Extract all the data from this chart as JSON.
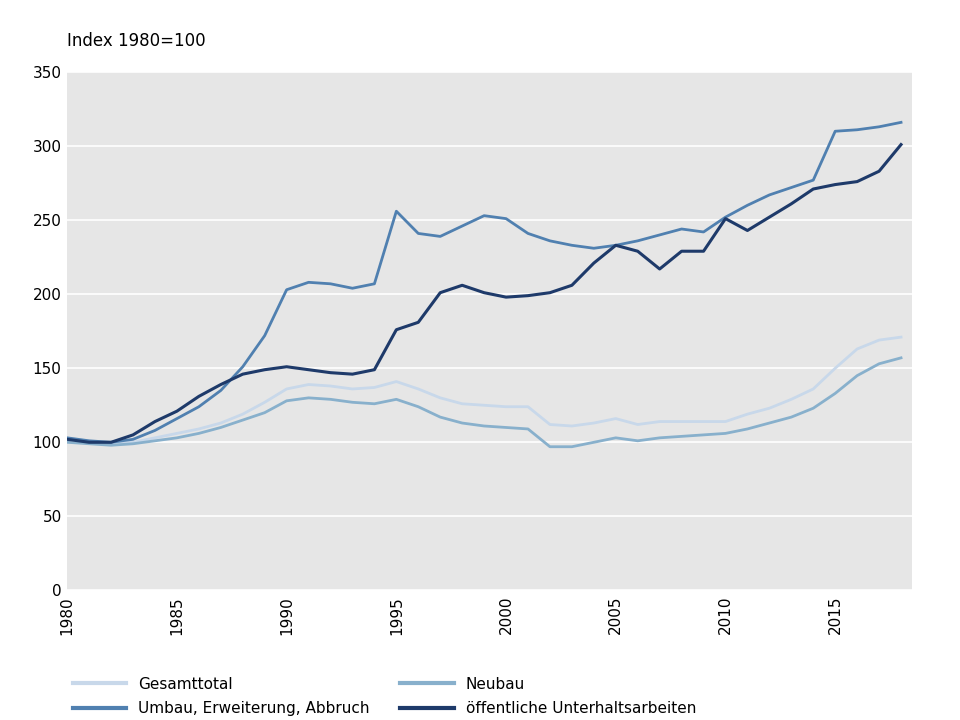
{
  "title": "Index 1980=100",
  "years": [
    1980,
    1981,
    1982,
    1983,
    1984,
    1985,
    1986,
    1987,
    1988,
    1989,
    1990,
    1991,
    1992,
    1993,
    1994,
    1995,
    1996,
    1997,
    1998,
    1999,
    2000,
    2001,
    2002,
    2003,
    2004,
    2005,
    2006,
    2007,
    2008,
    2009,
    2010,
    2011,
    2012,
    2013,
    2014,
    2015,
    2016,
    2017,
    2018
  ],
  "gesamttotal": [
    102,
    100,
    99,
    100,
    103,
    106,
    109,
    113,
    119,
    127,
    136,
    139,
    138,
    136,
    137,
    141,
    136,
    130,
    126,
    125,
    124,
    124,
    112,
    111,
    113,
    116,
    112,
    114,
    114,
    114,
    114,
    119,
    123,
    129,
    136,
    150,
    163,
    169,
    171
  ],
  "neubau": [
    100,
    99,
    98,
    99,
    101,
    103,
    106,
    110,
    115,
    120,
    128,
    130,
    129,
    127,
    126,
    129,
    124,
    117,
    113,
    111,
    110,
    109,
    97,
    97,
    100,
    103,
    101,
    103,
    104,
    105,
    106,
    109,
    113,
    117,
    123,
    133,
    145,
    153,
    157
  ],
  "umbau": [
    103,
    101,
    100,
    102,
    108,
    116,
    124,
    135,
    151,
    172,
    203,
    208,
    207,
    204,
    207,
    256,
    241,
    239,
    246,
    253,
    251,
    241,
    236,
    233,
    231,
    233,
    236,
    240,
    244,
    242,
    252,
    260,
    267,
    272,
    277,
    310,
    311,
    313,
    316
  ],
  "oeffentlich": [
    102,
    100,
    100,
    105,
    114,
    121,
    131,
    139,
    146,
    149,
    151,
    149,
    147,
    146,
    149,
    176,
    181,
    201,
    206,
    201,
    198,
    199,
    201,
    206,
    221,
    233,
    229,
    217,
    229,
    229,
    251,
    243,
    252,
    261,
    271,
    274,
    276,
    283,
    301
  ],
  "color_gesamttotal": "#c8d8ea",
  "color_neubau": "#88b0cc",
  "color_umbau": "#5080b0",
  "color_oeffentlich": "#1e3a6a",
  "ylim": [
    0,
    350
  ],
  "yticks": [
    0,
    50,
    100,
    150,
    200,
    250,
    300,
    350
  ],
  "xlim_min": 1980,
  "xlim_max": 2018.5,
  "xticks": [
    1980,
    1985,
    1990,
    1995,
    2000,
    2005,
    2010,
    2015
  ],
  "bg_color": "#e6e6e6",
  "fig_bg_color": "#ffffff",
  "legend_labels": [
    "Gesamttotal",
    "Neubau",
    "Umbau, Erweiterung, Abbruch",
    "öffentliche Unterhaltsarbeiten"
  ]
}
